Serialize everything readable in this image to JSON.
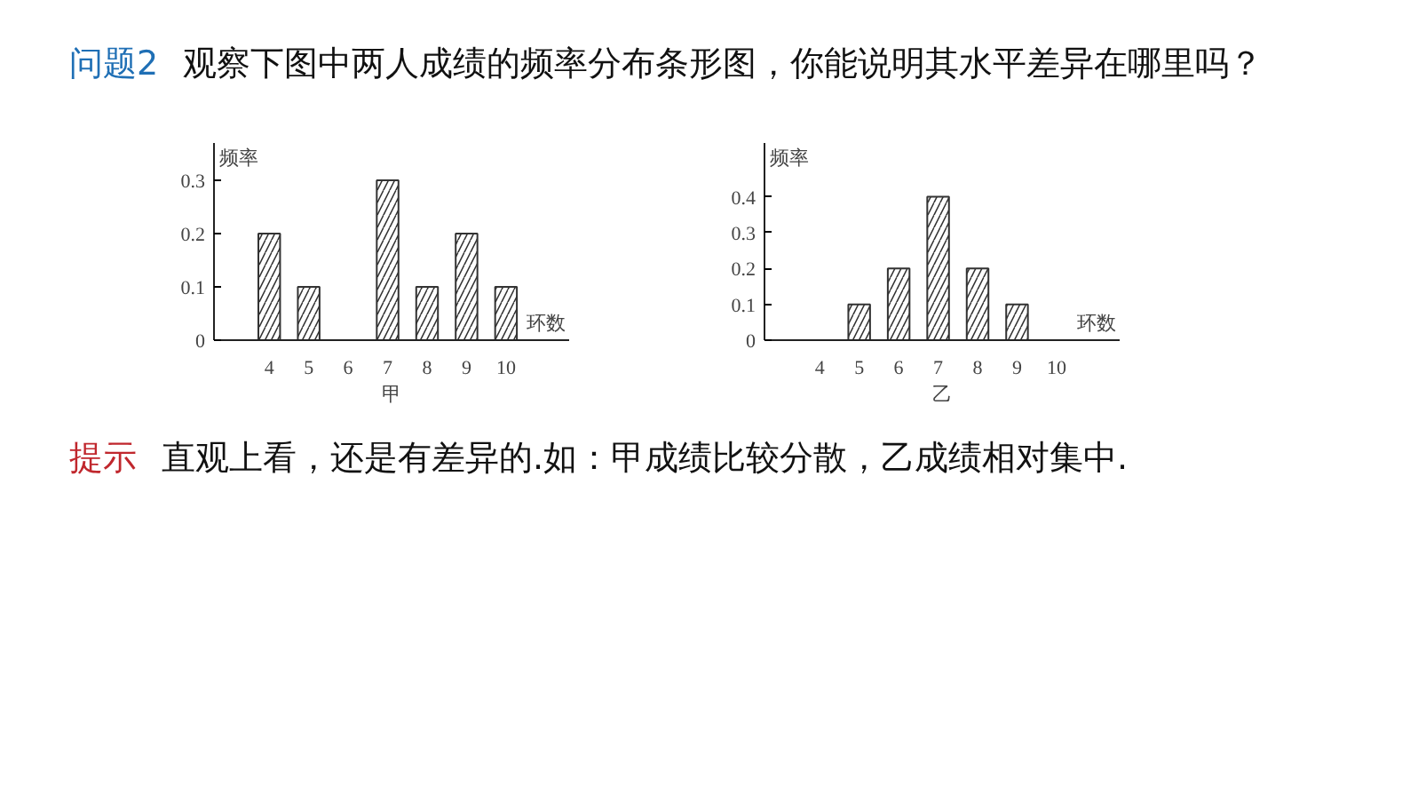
{
  "chart_data": [
    {
      "type": "bar",
      "title": "甲",
      "xlabel": "环数",
      "ylabel": "频率",
      "color": "#333333",
      "annotations": [
        "问题2",
        "观察下图中两人成绩的频率分布条形图，你能说明其水平差异在哪里吗？"
      ],
      "categories": [
        "4",
        "5",
        "6",
        "7",
        "8",
        "9",
        "10"
      ],
      "values": [
        0.2,
        0.1,
        null,
        0.3,
        0.1,
        0.2,
        0.1
      ],
      "ylim": [
        0,
        0.37
      ],
      "yticks": [
        0,
        0.1,
        0.2,
        0.3
      ],
      "grid": false
    },
    {
      "type": "bar",
      "title": "乙",
      "xlabel": "环数",
      "ylabel": "频率",
      "color": "#333333",
      "annotations": [
        "提示",
        "直观上看，还是有差异的.如：甲成绩比较分散，乙成绩相对集中."
      ],
      "categories": [
        "4",
        "5",
        "6",
        "7",
        "8",
        "9",
        "10"
      ],
      "values": [
        null,
        0.1,
        0.2,
        0.4,
        0.2,
        0.1,
        null
      ],
      "ylim": [
        0,
        0.55
      ],
      "yticks": [
        0,
        0.1,
        0.2,
        0.3,
        0.4
      ],
      "grid": false
    }
  ]
}
